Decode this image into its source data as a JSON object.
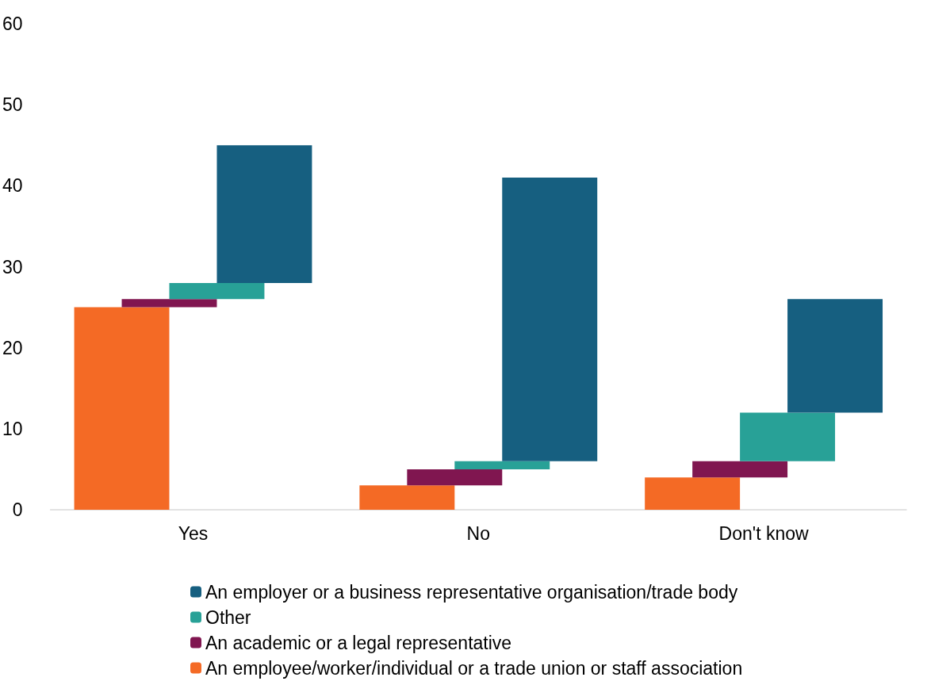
{
  "chart_data": {
    "type": "bar",
    "categories": [
      "Yes",
      "No",
      "Don't know"
    ],
    "series": [
      {
        "name": "An employee/worker/individual or a trade union or staff association",
        "color": "#f46a25",
        "values": [
          25,
          3,
          4
        ],
        "base": [
          0,
          0,
          0
        ]
      },
      {
        "name": "An academic or a legal representative",
        "color": "#801650",
        "values": [
          1,
          2,
          2
        ],
        "base": [
          25,
          3,
          4
        ]
      },
      {
        "name": "Other",
        "color": "#28a197",
        "values": [
          2,
          1,
          6
        ],
        "base": [
          26,
          5,
          6
        ]
      },
      {
        "name": "An employer or a business representative organisation/trade body",
        "color": "#165f80",
        "values": [
          17,
          35,
          14
        ],
        "base": [
          28,
          6,
          12
        ]
      }
    ],
    "ylim": [
      0,
      60
    ],
    "yticks": [
      0,
      10,
      20,
      30,
      40,
      50,
      60
    ],
    "grid": false,
    "legend": "bottom"
  }
}
